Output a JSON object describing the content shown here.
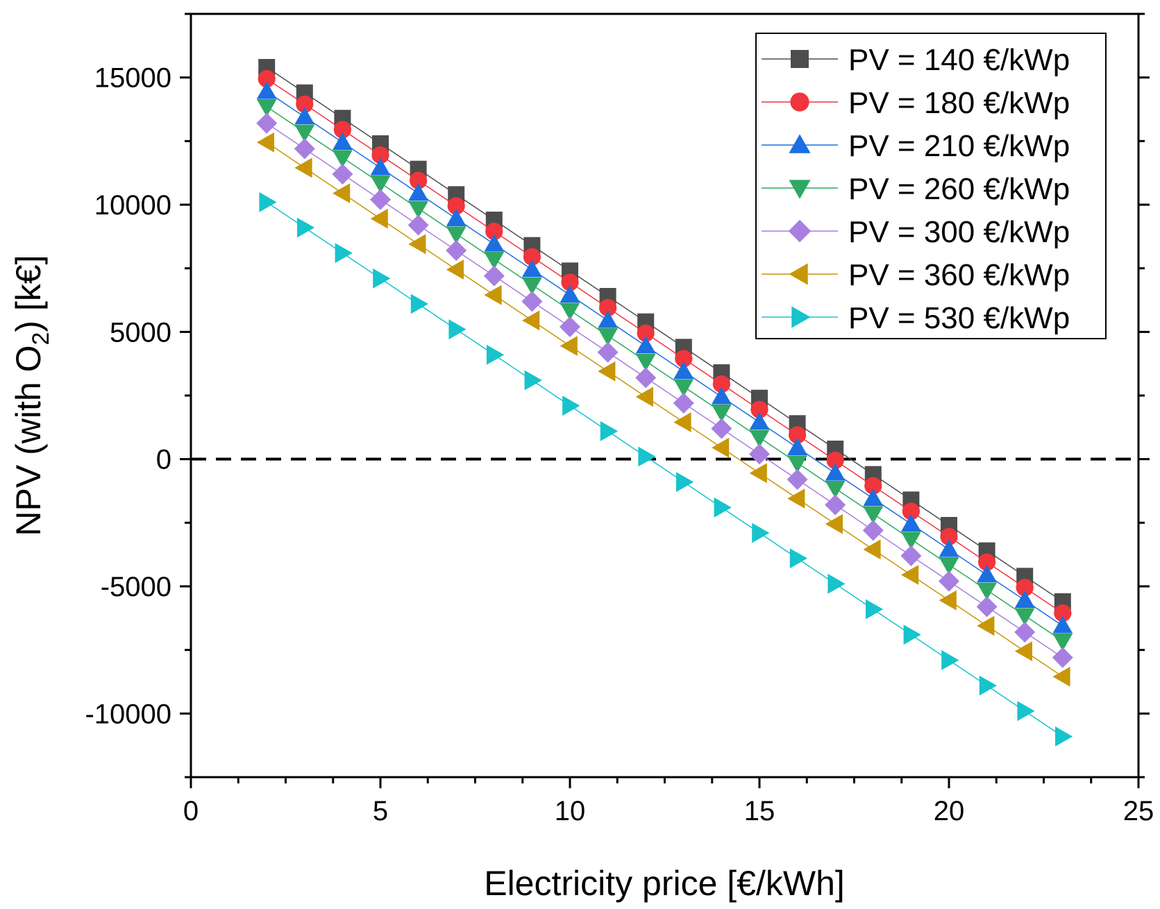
{
  "chart_data": {
    "type": "line",
    "title": "",
    "xlabel": "Electricity price [€/kWh]",
    "ylabel": {
      "prefix": "NPV (with O",
      "subscript": "2",
      "suffix": ") [k€]"
    },
    "xlim": [
      0,
      25
    ],
    "ylim": [
      -12500,
      17500
    ],
    "xticks": [
      {
        "value": 0,
        "label": "0"
      },
      {
        "value": 5,
        "label": "5"
      },
      {
        "value": 10,
        "label": "10"
      },
      {
        "value": 15,
        "label": "15"
      },
      {
        "value": 20,
        "label": "20"
      },
      {
        "value": 25,
        "label": "25"
      }
    ],
    "yticks": [
      {
        "value": -10000,
        "label": "-10000"
      },
      {
        "value": -5000,
        "label": "-5000"
      },
      {
        "value": 0,
        "label": "0"
      },
      {
        "value": 5000,
        "label": "5000"
      },
      {
        "value": 10000,
        "label": "10000"
      },
      {
        "value": 15000,
        "label": "15000"
      }
    ],
    "x_minor_step": 1.25,
    "y_minor_step": 2500,
    "reference_line": {
      "y": 0,
      "style": "dashed"
    },
    "legend_position": "top-right",
    "x": [
      2,
      3,
      4,
      5,
      6,
      7,
      8,
      9,
      10,
      11,
      12,
      13,
      14,
      15,
      16,
      17,
      18,
      19,
      20,
      21,
      22,
      23
    ],
    "series": [
      {
        "name": "PV = 140 €/kWp",
        "color": "#4d4d4d",
        "marker": "square",
        "values": [
          15400,
          14400,
          13400,
          12400,
          11400,
          10400,
          9400,
          8400,
          7400,
          6400,
          5400,
          4400,
          3400,
          2400,
          1400,
          400,
          -600,
          -1600,
          -2600,
          -3600,
          -4600,
          -5600
        ]
      },
      {
        "name": "PV = 180 €/kWp",
        "color": "#f0353c",
        "marker": "circle",
        "values": [
          14950,
          13950,
          12950,
          11950,
          10950,
          9950,
          8950,
          7950,
          6950,
          5950,
          4950,
          3950,
          2950,
          1950,
          950,
          -50,
          -1050,
          -2050,
          -3050,
          -4050,
          -5050,
          -6050
        ]
      },
      {
        "name": "PV = 210 €/kWp",
        "color": "#1c6fe0",
        "marker": "triangle-up",
        "values": [
          14450,
          13450,
          12450,
          11450,
          10450,
          9450,
          8450,
          7450,
          6450,
          5450,
          4450,
          3450,
          2450,
          1450,
          450,
          -550,
          -1550,
          -2550,
          -3550,
          -4550,
          -5550,
          -6550
        ]
      },
      {
        "name": "PV = 260 €/kWp",
        "color": "#2fa862",
        "marker": "triangle-down",
        "values": [
          13850,
          12850,
          11850,
          10850,
          9850,
          8850,
          7850,
          6850,
          5850,
          4850,
          3850,
          2850,
          1850,
          850,
          -150,
          -1150,
          -2150,
          -3150,
          -4150,
          -5150,
          -6150,
          -7150
        ]
      },
      {
        "name": "PV = 300 €/kWp",
        "color": "#a87fe0",
        "marker": "diamond",
        "values": [
          13200,
          12200,
          11200,
          10200,
          9200,
          8200,
          7200,
          6200,
          5200,
          4200,
          3200,
          2200,
          1200,
          200,
          -800,
          -1800,
          -2800,
          -3800,
          -4800,
          -5800,
          -6800,
          -7800
        ]
      },
      {
        "name": "PV = 360 €/kWp",
        "color": "#c89608",
        "marker": "triangle-left",
        "values": [
          12450,
          11450,
          10450,
          9450,
          8450,
          7450,
          6450,
          5450,
          4450,
          3450,
          2450,
          1450,
          450,
          -550,
          -1550,
          -2550,
          -3550,
          -4550,
          -5550,
          -6550,
          -7550,
          -8550
        ]
      },
      {
        "name": "PV = 530 €/kWp",
        "color": "#17c3cc",
        "marker": "triangle-right",
        "values": [
          10100,
          9100,
          8100,
          7100,
          6100,
          5100,
          4100,
          3100,
          2100,
          1100,
          100,
          -900,
          -1900,
          -2900,
          -3900,
          -4900,
          -5900,
          -6900,
          -7900,
          -8900,
          -9900,
          -10900
        ]
      }
    ]
  }
}
